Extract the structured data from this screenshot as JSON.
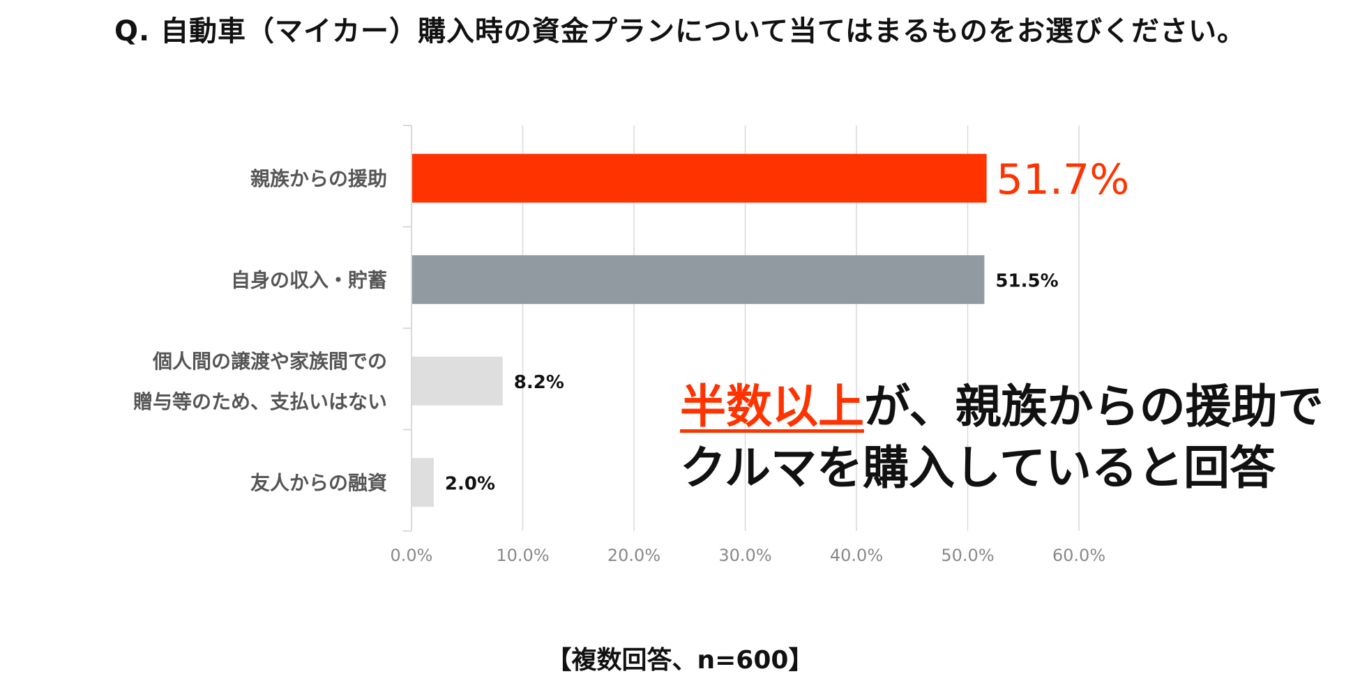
{
  "title": "Q. 自動車（マイカー）購入時の資金プランについて当てはまるものをお選びください。",
  "chart_data": {
    "type": "bar",
    "orientation": "horizontal",
    "categories": [
      [
        "親族からの援助"
      ],
      [
        "自身の収入・貯蓄"
      ],
      [
        "個人間の譲渡や家族間での",
        "贈与等のため、支払いはない"
      ],
      [
        "友人からの融資"
      ]
    ],
    "values": [
      51.7,
      51.5,
      8.2,
      2.0
    ],
    "value_labels": [
      "51.7%",
      "51.5%",
      "8.2%",
      "2.0%"
    ],
    "bar_colors": [
      "#ff3300",
      "#919aa1",
      "#dedede",
      "#dedede"
    ],
    "xlim": [
      0,
      60
    ],
    "xticks": [
      0,
      10,
      20,
      30,
      40,
      50,
      60
    ],
    "xtick_labels": [
      "0.0%",
      "10.0%",
      "20.0%",
      "30.0%",
      "40.0%",
      "50.0%",
      "60.0%"
    ],
    "grid": "vertical"
  },
  "callout": {
    "highlight": "半数以上",
    "line1_rest": "が、親族からの援助で",
    "line2": "クルマを購入していると回答"
  },
  "footnote": "【複数回答、n=600】",
  "colors": {
    "accent": "#ff3300",
    "text": "#111111",
    "category_label": "#555555",
    "axis_label": "#888888",
    "grid": "#d9d9d9"
  }
}
